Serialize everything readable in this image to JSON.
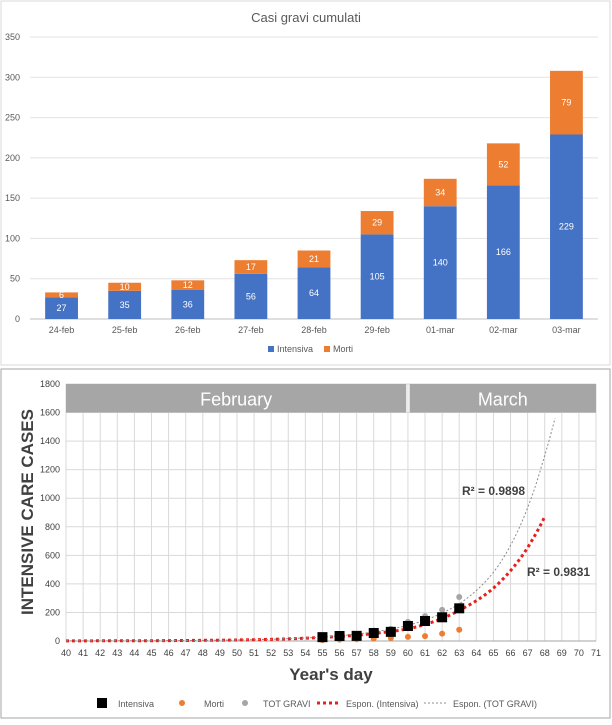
{
  "chart_data": [
    {
      "type": "bar",
      "stacked": true,
      "title": "Casi gravi cumulati",
      "categories": [
        "24-feb",
        "25-feb",
        "26-feb",
        "27-feb",
        "28-feb",
        "29-feb",
        "01-mar",
        "02-mar",
        "03-mar"
      ],
      "series": [
        {
          "name": "Intensiva",
          "values": [
            27,
            35,
            36,
            56,
            64,
            105,
            140,
            166,
            229
          ],
          "color": "#4472c4"
        },
        {
          "name": "Morti",
          "values": [
            6,
            10,
            12,
            17,
            21,
            29,
            34,
            52,
            79
          ],
          "color": "#ed7d31"
        }
      ],
      "ylim": [
        0,
        350
      ],
      "yticks": [
        0,
        50,
        100,
        150,
        200,
        250,
        300,
        350
      ],
      "grid": true,
      "legend": "bottom"
    },
    {
      "type": "scatter",
      "ylabel": "INTENSIVE CARE CASES",
      "xlabel": "Year's day",
      "xlim": [
        40,
        71
      ],
      "ylim": [
        0,
        1800
      ],
      "xticks": [
        40,
        41,
        42,
        43,
        44,
        45,
        46,
        47,
        48,
        49,
        50,
        51,
        52,
        53,
        54,
        55,
        56,
        57,
        58,
        59,
        60,
        61,
        62,
        63,
        64,
        65,
        66,
        67,
        68,
        69,
        70,
        71
      ],
      "yticks": [
        0,
        200,
        400,
        600,
        800,
        1000,
        1200,
        1400,
        1600,
        1800
      ],
      "grid": true,
      "legend": "bottom",
      "month_bands": [
        {
          "label": "February",
          "x_start": 40,
          "x_end": 59.9
        },
        {
          "label": "March",
          "x_start": 60.1,
          "x_end": 71
        }
      ],
      "x": [
        55,
        56,
        57,
        58,
        59,
        60,
        61,
        62,
        63
      ],
      "series": [
        {
          "name": "Intensiva",
          "marker": "square",
          "color": "#000000",
          "values": [
            27,
            35,
            36,
            56,
            64,
            105,
            140,
            166,
            229
          ]
        },
        {
          "name": "Morti",
          "marker": "circle",
          "color": "#ed7d31",
          "values": [
            6,
            10,
            12,
            17,
            21,
            29,
            34,
            52,
            79
          ]
        },
        {
          "name": "TOT GRAVI",
          "marker": "circle",
          "color": "#a5a5a5",
          "values": [
            33,
            45,
            48,
            73,
            85,
            134,
            174,
            218,
            308
          ]
        }
      ],
      "trendlines": [
        {
          "name": "Espon. (Intensiva)",
          "color": "#e8201c",
          "style": "dotted-bold",
          "x_range": [
            40,
            68
          ],
          "points": [
            [
              40,
              0.7
            ],
            [
              45,
              2.3
            ],
            [
              50,
              7.1
            ],
            [
              55,
              25
            ],
            [
              60,
              85
            ],
            [
              63,
              215
            ],
            [
              65,
              370
            ],
            [
              68,
              870
            ]
          ],
          "r2": "R² = 0.9831"
        },
        {
          "name": "Espon. (TOT GRAVI)",
          "color": "#8c8c8c",
          "style": "dotted-thin",
          "x_range": [
            40,
            68.6
          ],
          "points": [
            [
              40,
              0.5
            ],
            [
              45,
              2
            ],
            [
              50,
              7
            ],
            [
              55,
              28
            ],
            [
              60,
              110
            ],
            [
              63,
              260
            ],
            [
              65,
              480
            ],
            [
              68,
              1300
            ],
            [
              68.6,
              1560
            ]
          ],
          "r2": "R² = 0.9898"
        }
      ]
    }
  ]
}
